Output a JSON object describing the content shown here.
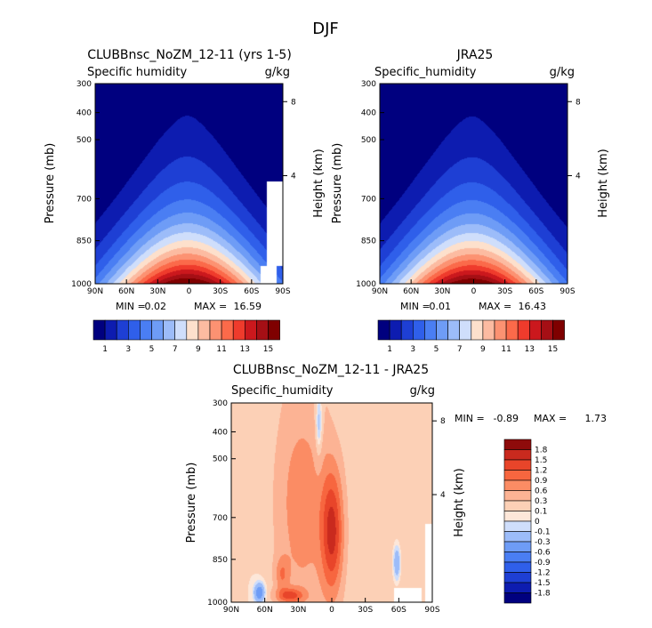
{
  "figure": {
    "title": "DJF"
  },
  "colors": {
    "positive_scale": [
      "#00007f",
      "#0d1cb0",
      "#1e3fd4",
      "#2f5fea",
      "#4a7ef3",
      "#6e9cf6",
      "#9cbcf9",
      "#cfdefb",
      "#fde0cc",
      "#fcbba1",
      "#fc9272",
      "#fb6a4a",
      "#ef3b2c",
      "#cb181d",
      "#a50f15",
      "#7f0000"
    ],
    "diff_scale": [
      "#00007f",
      "#0d1cb0",
      "#1e3fd4",
      "#2f5fea",
      "#4a7ef3",
      "#6e9cf6",
      "#9cbcf9",
      "#cfdefb",
      "#fde7d9",
      "#fcd0b6",
      "#fcb394",
      "#fb8c64",
      "#f7663f",
      "#e8452a",
      "#c92a1e",
      "#8e0b0b"
    ]
  },
  "chart_data": [
    {
      "type": "heatmap",
      "title": "CLUBBnsc_NoZM_12-11 (yrs 1-5)",
      "variable": "Specific humidity",
      "units": "g/kg",
      "ylabel": "Pressure (mb)",
      "y2label": "Height (km)",
      "x_ticks": [
        "90N",
        "60N",
        "30N",
        "0",
        "30S",
        "60S",
        "90S"
      ],
      "y_ticks": [
        "300",
        "400",
        "500",
        "700",
        "850",
        "1000"
      ],
      "y2_ticks": [
        "8",
        "4"
      ],
      "stats": {
        "min_label": "MIN =",
        "min": "0.02",
        "max_label": "MAX =",
        "max": "16.59"
      },
      "colorbar_labels": [
        "1",
        "3",
        "5",
        "7",
        "9",
        "11",
        "13",
        "15"
      ],
      "peak": 16.59
    },
    {
      "type": "heatmap",
      "title": "JRA25",
      "variable": "Specific_humidity",
      "units": "g/kg",
      "ylabel": "Pressure (mb)",
      "y2label": "Height (km)",
      "x_ticks": [
        "90N",
        "60N",
        "30N",
        "0",
        "30S",
        "60S",
        "90S"
      ],
      "y_ticks": [
        "300",
        "400",
        "500",
        "700",
        "850",
        "1000"
      ],
      "y2_ticks": [
        "8",
        "4"
      ],
      "stats": {
        "min_label": "MIN =",
        "min": "0.01",
        "max_label": "MAX =",
        "max": "16.43"
      },
      "colorbar_labels": [
        "1",
        "3",
        "5",
        "7",
        "9",
        "11",
        "13",
        "15"
      ],
      "peak": 16.43
    },
    {
      "type": "heatmap",
      "title": "CLUBBnsc_NoZM_12-11 - JRA25",
      "variable": "Specific_humidity",
      "units": "g/kg",
      "ylabel": "Pressure (mb)",
      "y2label": "Height (km)",
      "x_ticks": [
        "90N",
        "60N",
        "30N",
        "0",
        "30S",
        "60S",
        "90S"
      ],
      "y_ticks": [
        "300",
        "400",
        "500",
        "700",
        "850",
        "1000"
      ],
      "y2_ticks": [
        "8",
        "4"
      ],
      "stats": {
        "min_label": "MIN =",
        "min": "-0.89",
        "max_label": "MAX =",
        "max": "1.73"
      },
      "colorbar_labels": [
        "1.8",
        "1.5",
        "1.2",
        "0.9",
        "0.6",
        "0.3",
        "0.1",
        "0",
        "-0.1",
        "-0.3",
        "-0.6",
        "-0.9",
        "-1.2",
        "-1.5",
        "-1.8"
      ],
      "levels": [
        -1.8,
        -1.5,
        -1.2,
        -0.9,
        -0.6,
        -0.3,
        -0.1,
        0,
        0.1,
        0.3,
        0.6,
        0.9,
        1.2,
        1.5,
        1.8
      ]
    }
  ]
}
